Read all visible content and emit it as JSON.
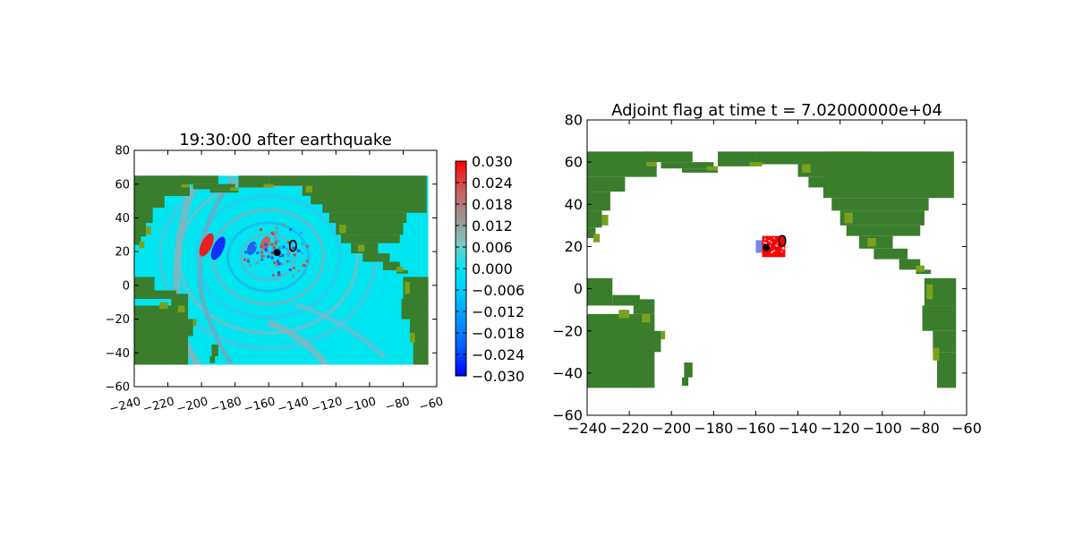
{
  "chart_data": [
    {
      "type": "heatmap",
      "title": "19:30:00 after earthquake",
      "xlim": [
        -240,
        -60
      ],
      "ylim": [
        -60,
        80
      ],
      "xticks": [
        -240,
        -220,
        -200,
        -180,
        -160,
        -140,
        -120,
        -100,
        -80,
        -60
      ],
      "yticks": [
        -60,
        -40,
        -20,
        0,
        20,
        40,
        60,
        80
      ],
      "xtick_labels": [
        "−240",
        "−220",
        "−200",
        "−180",
        "−160",
        "−140",
        "−120",
        "−100",
        "−80",
        "−60"
      ],
      "ytick_labels": [
        "−60",
        "−40",
        "−20",
        "0",
        "20",
        "40",
        "60",
        "80"
      ],
      "data_extent": {
        "lon": [
          -240,
          -65
        ],
        "lat": [
          -47,
          65
        ]
      },
      "background_value": 0.0,
      "marker": {
        "lon": -155,
        "lat": 19.5,
        "label": "0"
      },
      "features": [
        {
          "name": "leading wave crest",
          "lon": -197,
          "lat": 24,
          "value": 0.03
        },
        {
          "name": "leading wave trough",
          "lon": -190,
          "lat": 22,
          "value": -0.03
        },
        {
          "name": "inner crest",
          "lon": -162,
          "lat": 25,
          "value": 0.02
        },
        {
          "name": "inner trough",
          "lon": -170,
          "lat": 22,
          "value": -0.02
        }
      ],
      "colorbar": {
        "vmin": -0.03,
        "vmax": 0.03,
        "ticks": [
          "0.030",
          "0.024",
          "0.018",
          "0.012",
          "0.006",
          "0.000",
          "−0.006",
          "−0.012",
          "−0.018",
          "−0.024",
          "−0.030"
        ],
        "colors": [
          "#0000ff",
          "#00e5ff",
          "#9a9a9a",
          "#ff0000"
        ]
      },
      "land_color": "#3a7d2c",
      "coast_color": "#7aa11d"
    },
    {
      "type": "heatmap",
      "title": "Adjoint flag at time t = 7.02000000e+04",
      "xlim": [
        -240,
        -60
      ],
      "ylim": [
        -60,
        80
      ],
      "xticks": [
        -240,
        -220,
        -200,
        -180,
        -160,
        -140,
        -120,
        -100,
        -80,
        -60
      ],
      "yticks": [
        -60,
        -40,
        -20,
        0,
        20,
        40,
        60,
        80
      ],
      "xtick_labels": [
        "−240",
        "−220",
        "−200",
        "−180",
        "−160",
        "−140",
        "−120",
        "−100",
        "−80",
        "−60"
      ],
      "ytick_labels": [
        "−60",
        "−40",
        "−20",
        "0",
        "20",
        "40",
        "60",
        "80"
      ],
      "data_extent": {
        "lon": [
          -240,
          -65
        ],
        "lat": [
          -47,
          65
        ]
      },
      "marker": {
        "lon": -155,
        "lat": 19.5,
        "label": "0"
      },
      "flag_region": {
        "lon": [
          -157,
          -146
        ],
        "lat": [
          15,
          25
        ],
        "color": "#ff0000"
      },
      "source_region": {
        "lon": [
          -160,
          -154
        ],
        "lat": [
          17,
          23
        ],
        "color": "#7b85e6"
      },
      "land_color": "#3a7d2c",
      "coast_color": "#7aa11d"
    }
  ]
}
